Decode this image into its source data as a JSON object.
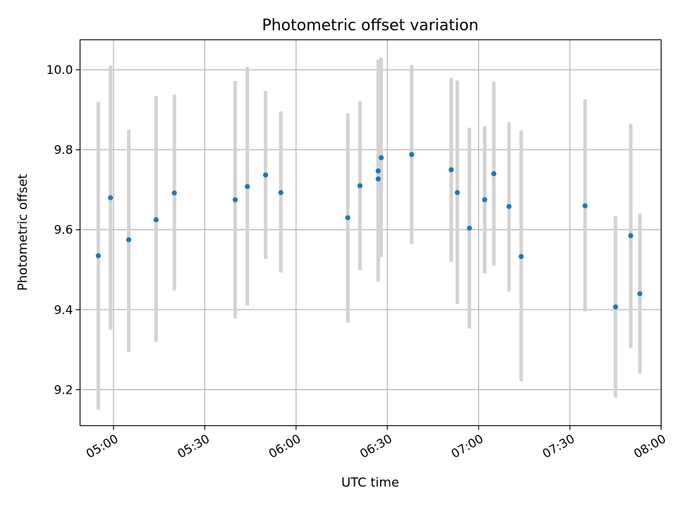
{
  "chart_data": {
    "type": "scatter",
    "title": "Photometric offset variation",
    "xlabel": "UTC time",
    "ylabel": "Photometric offset",
    "x_ticks": [
      "05:00",
      "05:30",
      "06:00",
      "06:30",
      "07:00",
      "07:30",
      "08:00"
    ],
    "y_ticks": [
      "9.2",
      "9.4",
      "9.6",
      "9.8",
      "10.0"
    ],
    "xlim": [
      "04:49",
      "08:00"
    ],
    "ylim": [
      9.11,
      10.075
    ],
    "grid": true,
    "legend": "none",
    "colors": {
      "point": "#1f77b4",
      "errorbar": "#d3d3d3",
      "grid": "#b0b0b0"
    },
    "points": [
      {
        "x": "04:55",
        "y": 9.535,
        "low": 9.15,
        "high": 9.92
      },
      {
        "x": "04:59",
        "y": 9.68,
        "low": 9.35,
        "high": 10.01
      },
      {
        "x": "05:05",
        "y": 9.575,
        "low": 9.295,
        "high": 9.85
      },
      {
        "x": "05:14",
        "y": 9.625,
        "low": 9.32,
        "high": 9.935
      },
      {
        "x": "05:20",
        "y": 9.692,
        "low": 9.448,
        "high": 9.938
      },
      {
        "x": "05:40",
        "y": 9.675,
        "low": 9.378,
        "high": 9.972
      },
      {
        "x": "05:44",
        "y": 9.708,
        "low": 9.41,
        "high": 10.007
      },
      {
        "x": "05:50",
        "y": 9.737,
        "low": 9.527,
        "high": 9.947
      },
      {
        "x": "05:55",
        "y": 9.693,
        "low": 9.493,
        "high": 9.896
      },
      {
        "x": "06:17",
        "y": 9.63,
        "low": 9.368,
        "high": 9.891
      },
      {
        "x": "06:21",
        "y": 9.71,
        "low": 9.499,
        "high": 9.921
      },
      {
        "x": "06:27",
        "y": 9.727,
        "low": 9.477,
        "high": 9.98
      },
      {
        "x": "06:27",
        "y": 9.747,
        "low": 9.47,
        "high": 10.025
      },
      {
        "x": "06:28",
        "y": 9.78,
        "low": 9.532,
        "high": 10.03
      },
      {
        "x": "06:38",
        "y": 9.788,
        "low": 9.564,
        "high": 10.012
      },
      {
        "x": "06:51",
        "y": 9.75,
        "low": 9.52,
        "high": 9.98
      },
      {
        "x": "06:53",
        "y": 9.693,
        "low": 9.414,
        "high": 9.973
      },
      {
        "x": "06:57",
        "y": 9.604,
        "low": 9.353,
        "high": 9.855
      },
      {
        "x": "07:02",
        "y": 9.675,
        "low": 9.491,
        "high": 9.859
      },
      {
        "x": "07:05",
        "y": 9.74,
        "low": 9.51,
        "high": 9.97
      },
      {
        "x": "07:10",
        "y": 9.658,
        "low": 9.445,
        "high": 9.869
      },
      {
        "x": "07:14",
        "y": 9.533,
        "low": 9.221,
        "high": 9.848
      },
      {
        "x": "07:35",
        "y": 9.66,
        "low": 9.396,
        "high": 9.926
      },
      {
        "x": "07:45",
        "y": 9.407,
        "low": 9.18,
        "high": 9.634
      },
      {
        "x": "07:50",
        "y": 9.585,
        "low": 9.304,
        "high": 9.865
      },
      {
        "x": "07:53",
        "y": 9.44,
        "low": 9.24,
        "high": 9.64
      }
    ]
  }
}
